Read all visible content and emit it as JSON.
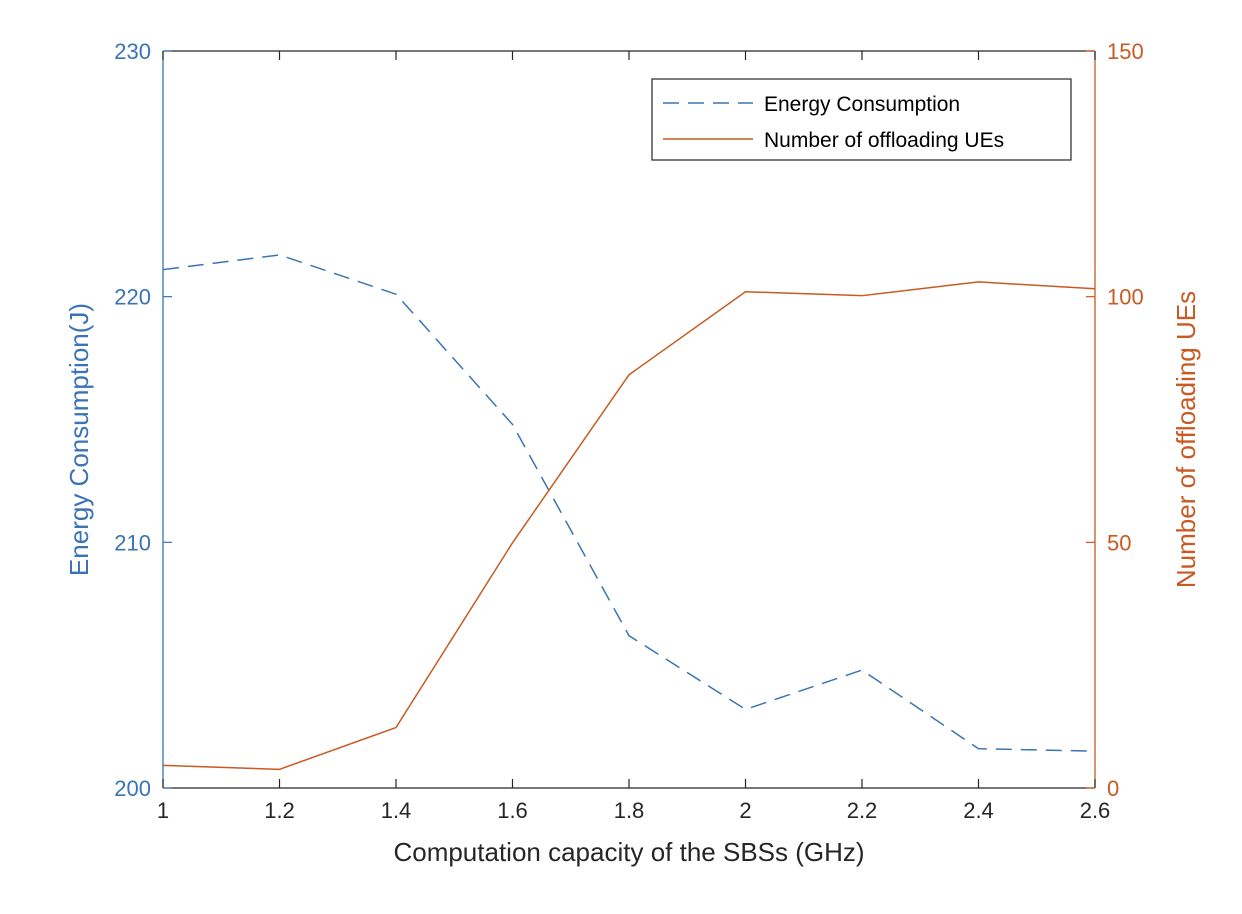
{
  "chart_data": {
    "type": "line",
    "x": [
      1,
      1.2,
      1.4,
      1.6,
      1.8,
      2,
      2.2,
      2.4,
      2.6
    ],
    "xlabel": "Computation capacity of the SBSs (GHz)",
    "xlim": [
      1,
      2.6
    ],
    "xticks": [
      "1",
      "1.2",
      "1.4",
      "1.6",
      "1.8",
      "2",
      "2.2",
      "2.4",
      "2.6"
    ],
    "ylabel_left": "Energy Consumption(J)",
    "ylim_left": [
      200,
      230
    ],
    "yticks_left": [
      "200",
      "210",
      "220",
      "230"
    ],
    "ylabel_right": "Number of offloading UEs",
    "ylim_right": [
      0,
      150
    ],
    "yticks_right": [
      "0",
      "50",
      "100",
      "150"
    ],
    "grid": false,
    "legend_position": "top-right",
    "series": [
      {
        "name": "Energy Consumption",
        "axis": "left",
        "style": "dashed",
        "color": "#3a74b4",
        "values": [
          221.1,
          221.7,
          220.1,
          214.8,
          206.2,
          203.2,
          204.8,
          201.6,
          201.5
        ]
      },
      {
        "name": "Number of offloading UEs",
        "axis": "right",
        "style": "solid",
        "color": "#c85a22",
        "values": [
          4.6,
          3.8,
          12.3,
          49.9,
          84.1,
          101.0,
          100.2,
          103.0,
          101.6
        ]
      }
    ]
  }
}
